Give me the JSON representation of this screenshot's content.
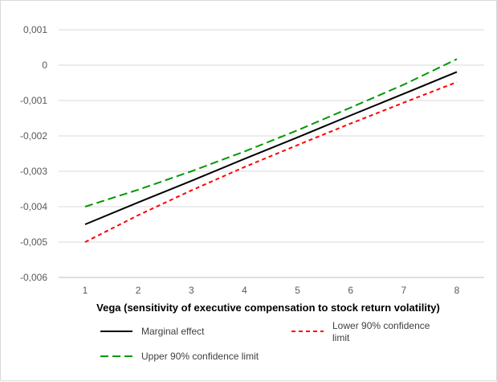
{
  "chart_data": {
    "type": "line",
    "title": "",
    "xlabel": "Vega (sensitivity of executive compensation to stock return volatility)",
    "ylabel": "",
    "x": [
      1,
      2,
      3,
      4,
      5,
      6,
      7,
      8
    ],
    "xlim": [
      1,
      8
    ],
    "ylim": [
      -0.006,
      0.001
    ],
    "yticks": [
      0.001,
      0,
      -0.001,
      -0.002,
      -0.003,
      -0.004,
      -0.005,
      -0.006
    ],
    "ytick_labels": [
      "0,001",
      "0",
      "-0,001",
      "-0,002",
      "-0,003",
      "-0,004",
      "-0,005",
      "-0,006"
    ],
    "xtick_labels": [
      "1",
      "2",
      "3",
      "4",
      "5",
      "6",
      "7",
      "8"
    ],
    "grid": "horizontal",
    "legend_position": "bottom",
    "series": [
      {
        "name": "Marginal effect",
        "color": "#000000",
        "dash": "solid",
        "values": [
          -0.0045,
          -0.00388,
          -0.00327,
          -0.00265,
          -0.00204,
          -0.00142,
          -0.00081,
          -0.00019
        ]
      },
      {
        "name": "Lower 90% confidence limit",
        "legend_lines": [
          "Lower 90% confidence",
          "limit"
        ],
        "color": "#ff0000",
        "dash": "dotted",
        "values": [
          -0.005,
          -0.00424,
          -0.00354,
          -0.00288,
          -0.00226,
          -0.00165,
          -0.00106,
          -0.00048
        ]
      },
      {
        "name": "Upper 90% confidence limit",
        "color": "#009900",
        "dash": "dashed",
        "values": [
          -0.004,
          -0.00352,
          -0.003,
          -0.00244,
          -0.00184,
          -0.0012,
          -0.00055,
          0.00017
        ]
      }
    ]
  }
}
